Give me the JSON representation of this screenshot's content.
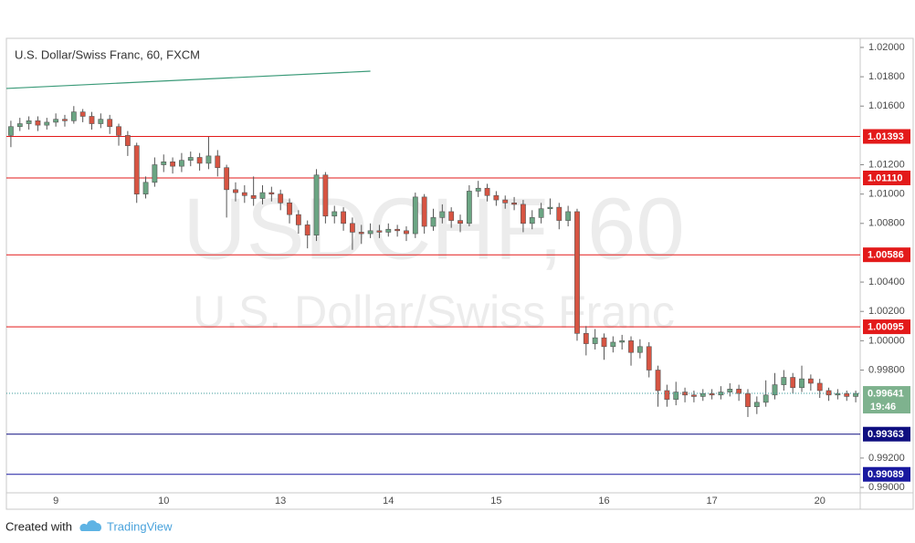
{
  "chart_data": {
    "type": "candlestick",
    "title": "U.S. Dollar/Swiss Franc, 60, FXCM",
    "watermark": "USDCHF, 60",
    "watermark_subtitle": "U.S. Dollar/Swiss Franc",
    "footer": {
      "created": "Created with",
      "brand": "TradingView"
    },
    "categories": [
      null,
      null,
      null,
      null,
      null,
      "9",
      null,
      null,
      null,
      null,
      null,
      null,
      null,
      null,
      null,
      null,
      null,
      "10",
      null,
      null,
      null,
      null,
      null,
      null,
      null,
      null,
      null,
      null,
      null,
      null,
      "13",
      null,
      null,
      null,
      null,
      null,
      null,
      null,
      null,
      null,
      null,
      null,
      "14",
      null,
      null,
      null,
      null,
      null,
      null,
      null,
      null,
      null,
      null,
      null,
      "15",
      null,
      null,
      null,
      null,
      null,
      null,
      null,
      null,
      null,
      null,
      null,
      "16",
      null,
      null,
      null,
      null,
      null,
      null,
      null,
      null,
      null,
      null,
      null,
      "17",
      null,
      null,
      null,
      null,
      null,
      null,
      null,
      null,
      null,
      null,
      null,
      "20",
      null,
      null,
      null,
      null
    ],
    "series": [
      {
        "name": "USDCHF",
        "up_color": "#6ba583",
        "down_color": "#d75442",
        "open": [
          1.014,
          1.0146,
          1.0148,
          1.015,
          1.0147,
          1.0149,
          1.0151,
          1.015,
          1.0156,
          1.0153,
          1.0148,
          1.0151,
          1.0146,
          1.014,
          1.0133,
          1.01,
          1.0108,
          1.012,
          1.0122,
          1.0119,
          1.0123,
          1.0125,
          1.0121,
          1.0126,
          1.0118,
          1.0103,
          1.0101,
          1.0099,
          1.0097,
          1.0101,
          1.01,
          1.0094,
          1.0086,
          1.0079,
          1.0072,
          1.0113,
          1.0085,
          1.0088,
          1.008,
          1.0074,
          1.0073,
          1.0075,
          1.0074,
          1.0076,
          1.0075,
          1.0073,
          1.0098,
          1.0078,
          1.0084,
          1.0088,
          1.0082,
          1.008,
          1.0102,
          1.0104,
          1.0099,
          1.0096,
          1.0094,
          1.0093,
          1.008,
          1.0084,
          1.009,
          1.0091,
          1.0082,
          1.0088,
          1.0005,
          0.9998,
          1.0002,
          0.9996,
          0.9999,
          1.0,
          0.9992,
          0.9996,
          0.998,
          0.9966,
          0.996,
          0.9965,
          0.9963,
          0.9962,
          0.9964,
          0.9963,
          0.9965,
          0.9967,
          0.9964,
          0.9955,
          0.9958,
          0.9963,
          0.997,
          0.9975,
          0.9968,
          0.9974,
          0.9971,
          0.9966,
          0.9963,
          0.9964,
          0.9962
        ],
        "high": [
          1.015,
          1.0152,
          1.0153,
          1.0153,
          1.0152,
          1.0155,
          1.0154,
          1.016,
          1.0158,
          1.0156,
          1.0155,
          1.0154,
          1.0148,
          1.0143,
          1.0135,
          1.0112,
          1.0125,
          1.0127,
          1.0125,
          1.0128,
          1.0129,
          1.0128,
          1.0139,
          1.013,
          1.012,
          1.0108,
          1.0106,
          1.0112,
          1.0106,
          1.0105,
          1.0103,
          1.0097,
          1.0089,
          1.0082,
          1.0117,
          1.0115,
          1.0092,
          1.0091,
          1.0084,
          1.0079,
          1.008,
          1.0079,
          1.008,
          1.0079,
          1.0078,
          1.0101,
          1.01,
          1.009,
          1.0093,
          1.0091,
          1.0086,
          1.0106,
          1.0109,
          1.0107,
          1.0102,
          1.0099,
          1.0098,
          1.0096,
          1.0089,
          1.0094,
          1.0097,
          1.0094,
          1.0092,
          1.009,
          1.001,
          1.0008,
          1.0005,
          1.0003,
          1.0004,
          1.0003,
          1.0001,
          0.9999,
          0.9983,
          0.997,
          0.9972,
          0.9968,
          0.9966,
          0.9967,
          0.9967,
          0.9969,
          0.9971,
          0.997,
          0.9967,
          0.9962,
          0.9973,
          0.9978,
          0.998,
          0.9978,
          0.9983,
          0.9977,
          0.9974,
          0.9968,
          0.9967,
          0.9966,
          0.9966
        ],
        "low": [
          1.0132,
          1.0143,
          1.0144,
          1.0143,
          1.0144,
          1.0146,
          1.0146,
          1.0148,
          1.0149,
          1.0144,
          1.0145,
          1.0141,
          1.0133,
          1.0126,
          1.0094,
          1.0097,
          1.0105,
          1.0115,
          1.0114,
          1.0115,
          1.0119,
          1.0116,
          1.0117,
          1.0112,
          1.0084,
          1.0095,
          1.0094,
          1.0092,
          1.0093,
          1.0095,
          1.0089,
          1.008,
          1.0073,
          1.0063,
          1.0068,
          1.008,
          1.008,
          1.0075,
          1.0062,
          1.0066,
          1.007,
          1.007,
          1.0071,
          1.0071,
          1.0068,
          1.007,
          1.0073,
          1.0075,
          1.008,
          1.0077,
          1.0074,
          1.0078,
          1.0098,
          1.0095,
          1.0092,
          1.009,
          1.0089,
          1.0074,
          1.0076,
          1.008,
          1.0086,
          1.0076,
          1.0078,
          1.0,
          0.999,
          0.9994,
          0.9987,
          0.9992,
          0.9994,
          0.9983,
          0.9988,
          0.9975,
          0.9955,
          0.9955,
          0.9956,
          0.9958,
          0.9958,
          0.9959,
          0.996,
          0.996,
          0.9962,
          0.9959,
          0.9948,
          0.995,
          0.9955,
          0.996,
          0.9966,
          0.9964,
          0.9965,
          0.9966,
          0.9961,
          0.9959,
          0.996,
          0.9959,
          0.9958
        ],
        "close": [
          1.0146,
          1.0148,
          1.015,
          1.0147,
          1.0149,
          1.0151,
          1.015,
          1.0156,
          1.0153,
          1.0148,
          1.0151,
          1.0146,
          1.014,
          1.0133,
          1.01,
          1.0108,
          1.012,
          1.0122,
          1.0119,
          1.0123,
          1.0125,
          1.0121,
          1.0126,
          1.0118,
          1.0103,
          1.0101,
          1.0099,
          1.0097,
          1.0101,
          1.01,
          1.0094,
          1.0086,
          1.0079,
          1.0072,
          1.0113,
          1.0085,
          1.0088,
          1.008,
          1.0074,
          1.0073,
          1.0075,
          1.0074,
          1.0076,
          1.0075,
          1.0073,
          1.0098,
          1.0078,
          1.0084,
          1.0088,
          1.0082,
          1.008,
          1.0102,
          1.0104,
          1.0099,
          1.0096,
          1.0094,
          1.0093,
          1.008,
          1.0084,
          1.009,
          1.0091,
          1.0082,
          1.0088,
          1.0005,
          0.9998,
          1.0002,
          0.9996,
          0.9999,
          1.0,
          0.9992,
          0.9996,
          0.998,
          0.9966,
          0.996,
          0.9965,
          0.9963,
          0.9962,
          0.9964,
          0.9963,
          0.9965,
          0.9967,
          0.9964,
          0.9955,
          0.9958,
          0.9963,
          0.997,
          0.9975,
          0.9968,
          0.9974,
          0.9971,
          0.9966,
          0.9963,
          0.9964,
          0.9962,
          0.99641
        ]
      }
    ],
    "ylim": [
      0.98963,
      1.02062
    ],
    "yticks": [
      {
        "value": 1.02,
        "label": "1.02000"
      },
      {
        "value": 1.018,
        "label": "1.01800"
      },
      {
        "value": 1.016,
        "label": "1.01600"
      },
      {
        "value": 1.012,
        "label": "1.01200"
      },
      {
        "value": 1.01,
        "label": "1.01000"
      },
      {
        "value": 1.008,
        "label": "1.00800"
      },
      {
        "value": 1.004,
        "label": "1.00400"
      },
      {
        "value": 1.002,
        "label": "1.00200"
      },
      {
        "value": 1.0,
        "label": "1.00000"
      },
      {
        "value": 0.998,
        "label": "0.99800"
      },
      {
        "value": 0.992,
        "label": "0.99200"
      },
      {
        "value": 0.99,
        "label": "0.99000"
      }
    ],
    "levels": [
      {
        "value": 1.01393,
        "label": "1.01393",
        "color": "#e31a1a"
      },
      {
        "value": 1.0111,
        "label": "1.01110",
        "color": "#e31a1a"
      },
      {
        "value": 1.00586,
        "label": "1.00586",
        "color": "#e31a1a"
      },
      {
        "value": 1.00095,
        "label": "1.00095",
        "color": "#e31a1a"
      },
      {
        "value": 0.99363,
        "label": "0.99363",
        "color": "#0f0f80"
      },
      {
        "value": 0.99089,
        "label": "0.99089",
        "color": "#1a1aa0"
      }
    ],
    "last_price": {
      "value": 0.99641,
      "label": "0.99641",
      "countdown": "19:46",
      "color": "#7eb28e"
    },
    "trend_line": {
      "x": [
        0,
        40
      ],
      "y": [
        1.0172,
        1.01838
      ],
      "color": "#3a9a78"
    },
    "grid": false
  }
}
